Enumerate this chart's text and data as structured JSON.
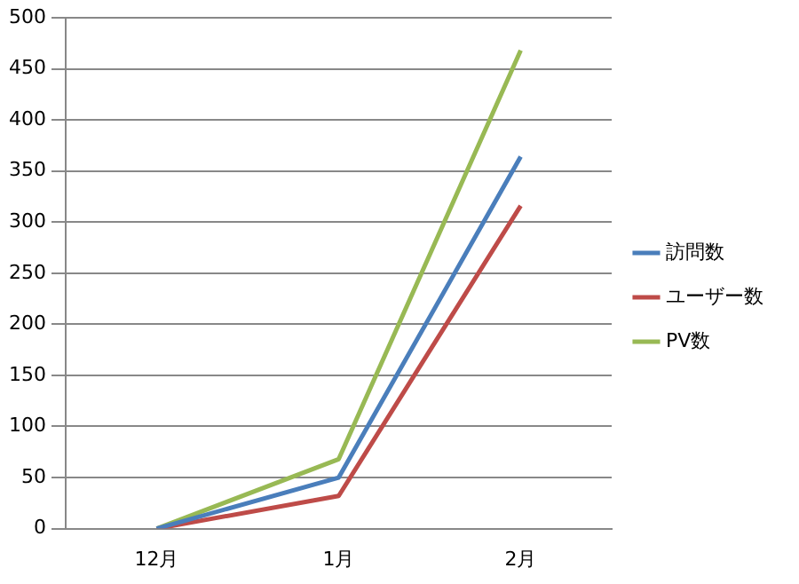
{
  "chart_data": {
    "type": "line",
    "categories": [
      "12月",
      "1月",
      "2月"
    ],
    "series": [
      {
        "name": "訪問数",
        "color": "#4a7ebb",
        "values": [
          0,
          50,
          364
        ]
      },
      {
        "name": "ユーザー数",
        "color": "#be4b48",
        "values": [
          0,
          32,
          316
        ]
      },
      {
        "name": "PV数",
        "color": "#98b954",
        "values": [
          0,
          68,
          468
        ]
      }
    ],
    "ylim": [
      0,
      500
    ],
    "yticks": [
      0,
      50,
      100,
      150,
      200,
      250,
      300,
      350,
      400,
      450,
      500
    ],
    "grid": "y",
    "legend": "right",
    "marker": "none",
    "line_style": "solid"
  }
}
